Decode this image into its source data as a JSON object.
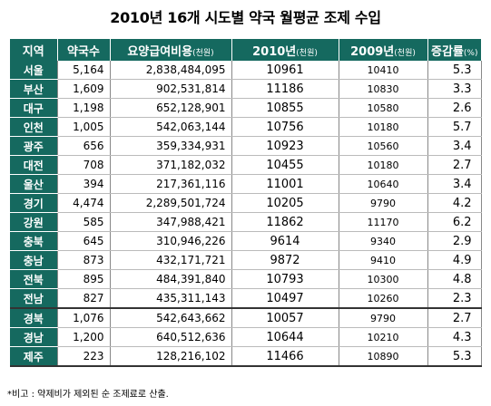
{
  "title": "2010년 16개 시도별 약국 월평균 조제 수입",
  "columns": [
    {
      "main": "지역",
      "unit": ""
    },
    {
      "main": "약국수",
      "unit": ""
    },
    {
      "main": "요양급여비용",
      "unit": "(천원)"
    },
    {
      "main": "2010년",
      "unit": "(천원)"
    },
    {
      "main": "2009년",
      "unit": "(천원)"
    },
    {
      "main": "증감률",
      "unit": "(%)"
    }
  ],
  "rows": [
    {
      "region": "서울",
      "pharmacies": "5,164",
      "cost": "2,838,484,095",
      "y2010": "10961",
      "y2009": "10410",
      "rate": "5.3"
    },
    {
      "region": "부산",
      "pharmacies": "1,609",
      "cost": "902,531,814",
      "y2010": "11186",
      "y2009": "10830",
      "rate": "3.3"
    },
    {
      "region": "대구",
      "pharmacies": "1,198",
      "cost": "652,128,901",
      "y2010": "10855",
      "y2009": "10580",
      "rate": "2.6"
    },
    {
      "region": "인천",
      "pharmacies": "1,005",
      "cost": "542,063,144",
      "y2010": "10756",
      "y2009": "10180",
      "rate": "5.7"
    },
    {
      "region": "광주",
      "pharmacies": "656",
      "cost": "359,334,931",
      "y2010": "10923",
      "y2009": "10560",
      "rate": "3.4"
    },
    {
      "region": "대전",
      "pharmacies": "708",
      "cost": "371,182,032",
      "y2010": "10455",
      "y2009": "10180",
      "rate": "2.7"
    },
    {
      "region": "울산",
      "pharmacies": "394",
      "cost": "217,361,116",
      "y2010": "11001",
      "y2009": "10640",
      "rate": "3.4"
    },
    {
      "region": "경기",
      "pharmacies": "4,474",
      "cost": "2,289,501,724",
      "y2010": "10205",
      "y2009": "9790",
      "rate": "4.2"
    },
    {
      "region": "강원",
      "pharmacies": "585",
      "cost": "347,988,421",
      "y2010": "11862",
      "y2009": "11170",
      "rate": "6.2"
    },
    {
      "region": "충북",
      "pharmacies": "645",
      "cost": "310,946,226",
      "y2010": "9614",
      "y2009": "9340",
      "rate": "2.9"
    },
    {
      "region": "충남",
      "pharmacies": "873",
      "cost": "432,171,721",
      "y2010": "9872",
      "y2009": "9410",
      "rate": "4.9"
    },
    {
      "region": "전북",
      "pharmacies": "895",
      "cost": "484,391,840",
      "y2010": "10793",
      "y2009": "10300",
      "rate": "4.8"
    },
    {
      "region": "전남",
      "pharmacies": "827",
      "cost": "435,311,143",
      "y2010": "10497",
      "y2009": "10260",
      "rate": "2.3"
    },
    {
      "region": "경북",
      "pharmacies": "1,076",
      "cost": "542,643,662",
      "y2010": "10057",
      "y2009": "9790",
      "rate": "2.7"
    },
    {
      "region": "경남",
      "pharmacies": "1,200",
      "cost": "640,512,636",
      "y2010": "10644",
      "y2009": "10210",
      "rate": "4.3"
    },
    {
      "region": "제주",
      "pharmacies": "223",
      "cost": "128,216,102",
      "y2010": "11466",
      "y2009": "10890",
      "rate": "5.3"
    }
  ],
  "note": "*비고 : 약제비가 제외된 순 조제료로 산출.",
  "colors": {
    "header_bg": "#15695f",
    "header_text": "#ffffff"
  }
}
